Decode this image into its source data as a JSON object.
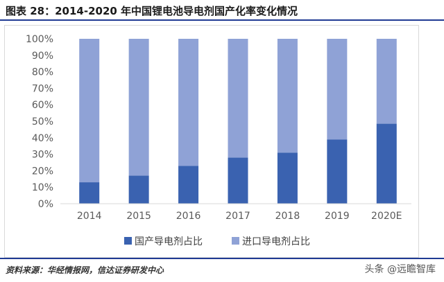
{
  "title": "图表 28：2014-2020 年中国锂电池导电剂国产化率变化情况",
  "source": "资料来源：华经情报网，信达证券研发中心",
  "watermark": "头条 @远瞻智库",
  "colors": {
    "domestic": "#3a62b0",
    "imported": "#8fa2d6",
    "rule": "#1f3a93"
  },
  "chart_data": {
    "type": "bar",
    "stacked": true,
    "percent": true,
    "categories": [
      "2014",
      "2015",
      "2016",
      "2017",
      "2018",
      "2019",
      "2020E"
    ],
    "series": [
      {
        "name": "国产导电剂占比",
        "values": [
          13,
          17,
          23,
          28,
          31,
          39,
          48.5
        ]
      },
      {
        "name": "进口导电剂占比",
        "values": [
          87,
          83,
          77,
          72,
          69,
          61,
          51.5
        ]
      }
    ],
    "yticks": [
      "0%",
      "10%",
      "20%",
      "30%",
      "40%",
      "50%",
      "60%",
      "70%",
      "80%",
      "90%",
      "100%"
    ],
    "ylim": [
      0,
      100
    ],
    "grid": false,
    "legend_position": "bottom"
  }
}
